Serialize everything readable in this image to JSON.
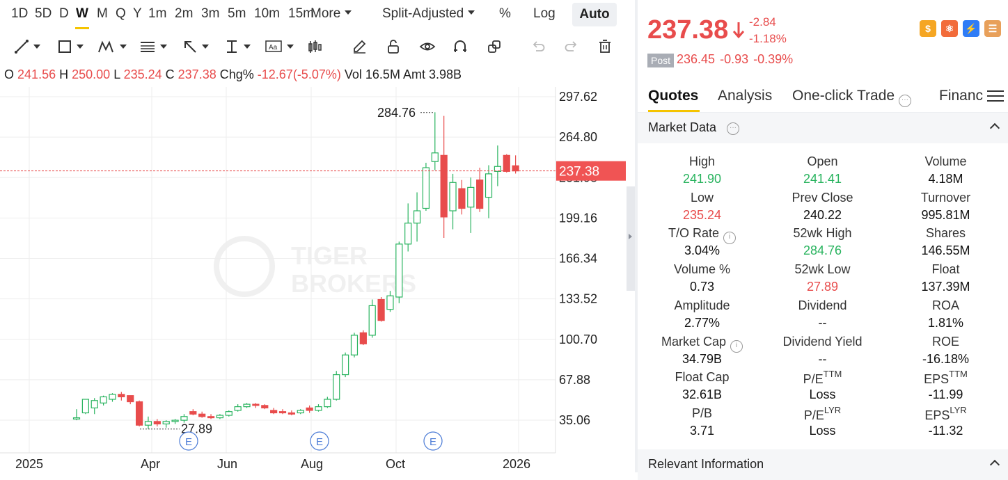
{
  "toolbar": {
    "periods": [
      "1D",
      "5D",
      "D",
      "W",
      "M",
      "Q",
      "Y",
      "1m",
      "2m",
      "3m",
      "5m",
      "10m",
      "15m"
    ],
    "active_period": "W",
    "more_label": "More",
    "adjust_label": "Split-Adjusted",
    "percent_label": "%",
    "log_label": "Log",
    "auto_label": "Auto"
  },
  "ohlc_line": {
    "o_label": "O",
    "o": "241.56",
    "h_label": "H",
    "h": "250.00",
    "l_label": "L",
    "l": "235.24",
    "c_label": "C",
    "c": "237.38",
    "chg_label": "Chg%",
    "chg": "-12.67(-5.07%)",
    "vol_label": "Vol",
    "vol": "16.5M",
    "amt_label": "Amt",
    "amt": "3.98B"
  },
  "chart_data": {
    "type": "candlestick",
    "y_tick_labels": [
      "297.62",
      "264.80",
      "231.98",
      "199.16",
      "166.34",
      "133.52",
      "100.70",
      "67.88",
      "35.06"
    ],
    "ylim": [
      19,
      306
    ],
    "x_tick_labels": [
      "2025",
      "Apr",
      "Jun",
      "Aug",
      "Oct",
      "2026"
    ],
    "current_price_label": "237.38",
    "max_label": "284.76",
    "min_label": "27.89",
    "event_markers": [
      "E",
      "E",
      "E"
    ],
    "watermark": [
      "TIGER",
      "BROKERS"
    ],
    "grid": true,
    "candles": [
      {
        "o": 36,
        "h": 44,
        "l": 35,
        "c": 37
      },
      {
        "o": 41,
        "h": 52,
        "l": 40,
        "c": 52
      },
      {
        "o": 45,
        "h": 53,
        "l": 40,
        "c": 51
      },
      {
        "o": 49,
        "h": 55,
        "l": 47,
        "c": 54
      },
      {
        "o": 52,
        "h": 57,
        "l": 50,
        "c": 56
      },
      {
        "o": 56,
        "h": 58,
        "l": 51,
        "c": 54
      },
      {
        "o": 55,
        "h": 55,
        "l": 48,
        "c": 50
      },
      {
        "o": 50,
        "h": 51,
        "l": 30,
        "c": 31
      },
      {
        "o": 31,
        "h": 38,
        "l": 28,
        "c": 34
      },
      {
        "o": 34,
        "h": 36,
        "l": 30,
        "c": 32
      },
      {
        "o": 32,
        "h": 35,
        "l": 29,
        "c": 34
      },
      {
        "o": 34,
        "h": 36,
        "l": 32,
        "c": 35
      },
      {
        "o": 35,
        "h": 40,
        "l": 33,
        "c": 38
      },
      {
        "o": 42,
        "h": 44,
        "l": 39,
        "c": 40
      },
      {
        "o": 40,
        "h": 42,
        "l": 37,
        "c": 38
      },
      {
        "o": 38,
        "h": 40,
        "l": 36,
        "c": 37
      },
      {
        "o": 37,
        "h": 40,
        "l": 36,
        "c": 39
      },
      {
        "o": 39,
        "h": 43,
        "l": 38,
        "c": 42
      },
      {
        "o": 43,
        "h": 48,
        "l": 42,
        "c": 46
      },
      {
        "o": 46,
        "h": 49,
        "l": 45,
        "c": 48
      },
      {
        "o": 48,
        "h": 49,
        "l": 45,
        "c": 47
      },
      {
        "o": 47,
        "h": 48,
        "l": 44,
        "c": 45
      },
      {
        "o": 43,
        "h": 45,
        "l": 40,
        "c": 41
      },
      {
        "o": 42,
        "h": 44,
        "l": 40,
        "c": 41
      },
      {
        "o": 41,
        "h": 43,
        "l": 39,
        "c": 40
      },
      {
        "o": 41,
        "h": 44,
        "l": 40,
        "c": 43
      },
      {
        "o": 45,
        "h": 47,
        "l": 41,
        "c": 43
      },
      {
        "o": 43,
        "h": 48,
        "l": 42,
        "c": 46
      },
      {
        "o": 46,
        "h": 54,
        "l": 45,
        "c": 52
      },
      {
        "o": 52,
        "h": 75,
        "l": 51,
        "c": 72
      },
      {
        "o": 72,
        "h": 90,
        "l": 70,
        "c": 88
      },
      {
        "o": 88,
        "h": 106,
        "l": 86,
        "c": 104
      },
      {
        "o": 106,
        "h": 108,
        "l": 96,
        "c": 97
      },
      {
        "o": 104,
        "h": 133,
        "l": 102,
        "c": 128
      },
      {
        "o": 133,
        "h": 135,
        "l": 115,
        "c": 116
      },
      {
        "o": 125,
        "h": 140,
        "l": 123,
        "c": 136
      },
      {
        "o": 135,
        "h": 180,
        "l": 130,
        "c": 178
      },
      {
        "o": 178,
        "h": 211,
        "l": 172,
        "c": 195
      },
      {
        "o": 195,
        "h": 220,
        "l": 180,
        "c": 205
      },
      {
        "o": 207,
        "h": 244,
        "l": 205,
        "c": 240
      },
      {
        "o": 245,
        "h": 285,
        "l": 238,
        "c": 252
      },
      {
        "o": 250,
        "h": 282,
        "l": 183,
        "c": 200
      },
      {
        "o": 205,
        "h": 235,
        "l": 190,
        "c": 228
      },
      {
        "o": 223,
        "h": 230,
        "l": 202,
        "c": 207
      },
      {
        "o": 208,
        "h": 232,
        "l": 187,
        "c": 224
      },
      {
        "o": 230,
        "h": 240,
        "l": 204,
        "c": 207
      },
      {
        "o": 216,
        "h": 242,
        "l": 199,
        "c": 235
      },
      {
        "o": 237,
        "h": 258,
        "l": 225,
        "c": 241
      },
      {
        "o": 250,
        "h": 251,
        "l": 236,
        "c": 237
      },
      {
        "o": 241.56,
        "h": 250.0,
        "l": 235.24,
        "c": 237.38
      }
    ]
  },
  "quote": {
    "price": "237.38",
    "change": "-2.84",
    "change_pct": "-1.18%",
    "post_label": "Post",
    "post_price": "236.45",
    "post_change": "-0.93",
    "post_change_pct": "-0.39%"
  },
  "tabs": [
    "Quotes",
    "Analysis",
    "One-click Trade",
    "Financ"
  ],
  "market_data": {
    "title": "Market Data",
    "rows": [
      [
        {
          "label": "High",
          "value": "241.90",
          "color": "green"
        },
        {
          "label": "Open",
          "value": "241.41",
          "color": "green"
        },
        {
          "label": "Volume",
          "value": "4.18M",
          "color": ""
        }
      ],
      [
        {
          "label": "Low",
          "value": "235.24",
          "color": "red"
        },
        {
          "label": "Prev Close",
          "value": "240.22",
          "color": ""
        },
        {
          "label": "Turnover",
          "value": "995.81M",
          "color": ""
        }
      ],
      [
        {
          "label": "T/O Rate",
          "value": "3.04%",
          "color": "",
          "info": true
        },
        {
          "label": "52wk High",
          "value": "284.76",
          "color": "green"
        },
        {
          "label": "Shares",
          "value": "146.55M",
          "color": ""
        }
      ],
      [
        {
          "label": "Volume %",
          "value": "0.73",
          "color": ""
        },
        {
          "label": "52wk Low",
          "value": "27.89",
          "color": "red"
        },
        {
          "label": "Float",
          "value": "137.39M",
          "color": ""
        }
      ],
      [
        {
          "label": "Amplitude",
          "value": "2.77%",
          "color": ""
        },
        {
          "label": "Dividend",
          "value": "--",
          "color": ""
        },
        {
          "label": "ROA",
          "value": "1.81%",
          "color": ""
        }
      ],
      [
        {
          "label": "Market Cap",
          "value": "34.79B",
          "color": "",
          "info": true
        },
        {
          "label": "Dividend Yield",
          "value": "--",
          "color": ""
        },
        {
          "label": "ROE",
          "value": "-16.18%",
          "color": ""
        }
      ],
      [
        {
          "label": "Float Cap",
          "value": "32.61B",
          "color": ""
        },
        {
          "label": "P/E",
          "sup": "TTM",
          "value": "Loss",
          "color": ""
        },
        {
          "label": "EPS",
          "sup": "TTM",
          "value": "-11.99",
          "color": ""
        }
      ],
      [
        {
          "label": "P/B",
          "value": "3.71",
          "color": ""
        },
        {
          "label": "P/E",
          "sup": "LYR",
          "value": "Loss",
          "color": ""
        },
        {
          "label": "EPS",
          "sup": "LYR",
          "value": "-11.32",
          "color": ""
        }
      ]
    ]
  },
  "relevant_info": {
    "title": "Relevant Information"
  },
  "colors": {
    "up": "#28b35e",
    "down": "#e84c4c",
    "accent": "#f5c400"
  }
}
